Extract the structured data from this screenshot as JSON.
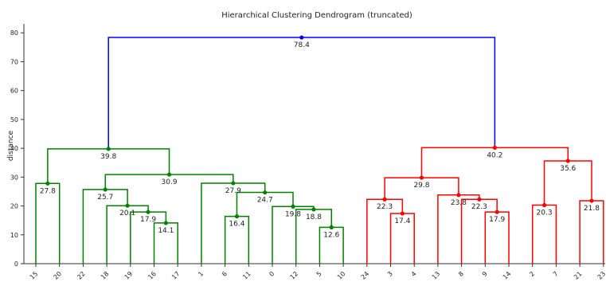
{
  "chart_data": {
    "type": "dendrogram",
    "title": "Hierarchical Clustering Dendrogram (truncated)",
    "xlabel": "",
    "ylabel": "distance",
    "ylim": [
      0,
      82
    ],
    "yticks": [
      0,
      10,
      20,
      30,
      40,
      50,
      60,
      70,
      80
    ],
    "grid": false,
    "leaves": [
      "15",
      "20",
      "22",
      "18",
      "19",
      "16",
      "17",
      "1",
      "6",
      "11",
      "0",
      "12",
      "5",
      "10",
      "24",
      "3",
      "4",
      "13",
      "8",
      "9",
      "14",
      "2",
      "7",
      "21",
      "23"
    ],
    "colors": {
      "left": "#008000",
      "right": "#ff0000",
      "root": "#0000ff"
    },
    "merges": [
      {
        "id": "a",
        "left": {
          "leaf": 0
        },
        "right": {
          "leaf": 1
        },
        "height": 27.8,
        "color": "#008000",
        "label": "27.8"
      },
      {
        "id": "b",
        "left": {
          "leaf": 5
        },
        "right": {
          "leaf": 6
        },
        "height": 14.1,
        "color": "#008000",
        "label": "14.1"
      },
      {
        "id": "c",
        "left": {
          "leaf": 4
        },
        "right": {
          "node": "b"
        },
        "height": 17.9,
        "color": "#008000",
        "label": "17.9"
      },
      {
        "id": "d",
        "left": {
          "leaf": 3
        },
        "right": {
          "node": "c"
        },
        "height": 20.1,
        "color": "#008000",
        "label": "20.1"
      },
      {
        "id": "e",
        "left": {
          "leaf": 2
        },
        "right": {
          "node": "d"
        },
        "height": 25.7,
        "color": "#008000",
        "label": "25.7"
      },
      {
        "id": "f",
        "left": {
          "leaf": 8
        },
        "right": {
          "leaf": 9
        },
        "height": 16.4,
        "color": "#008000",
        "label": "16.4"
      },
      {
        "id": "g",
        "left": {
          "leaf": 12
        },
        "right": {
          "leaf": 13
        },
        "height": 12.6,
        "color": "#008000",
        "label": "12.6"
      },
      {
        "id": "h",
        "left": {
          "leaf": 11
        },
        "right": {
          "node": "g"
        },
        "height": 18.8,
        "color": "#008000",
        "label": "18.8"
      },
      {
        "id": "i",
        "left": {
          "leaf": 10
        },
        "right": {
          "node": "h"
        },
        "height": 19.8,
        "color": "#008000",
        "label": "19.8"
      },
      {
        "id": "j",
        "left": {
          "node": "f"
        },
        "right": {
          "node": "i"
        },
        "height": 24.7,
        "color": "#008000",
        "label": "24.7"
      },
      {
        "id": "k",
        "left": {
          "leaf": 7
        },
        "right": {
          "node": "j"
        },
        "height": 27.9,
        "color": "#008000",
        "label": "27.9"
      },
      {
        "id": "l",
        "left": {
          "node": "e"
        },
        "right": {
          "node": "k"
        },
        "height": 30.9,
        "color": "#008000",
        "label": "30.9"
      },
      {
        "id": "m",
        "left": {
          "node": "a"
        },
        "right": {
          "node": "l"
        },
        "height": 39.8,
        "color": "#008000",
        "label": "39.8"
      },
      {
        "id": "n",
        "left": {
          "leaf": 15
        },
        "right": {
          "leaf": 16
        },
        "height": 17.4,
        "color": "#ff0000",
        "label": "17.4"
      },
      {
        "id": "o",
        "left": {
          "leaf": 14
        },
        "right": {
          "node": "n"
        },
        "height": 22.3,
        "color": "#ff0000",
        "label": "22.3"
      },
      {
        "id": "p",
        "left": {
          "leaf": 19
        },
        "right": {
          "leaf": 20
        },
        "height": 17.9,
        "color": "#ff0000",
        "label": "17.9"
      },
      {
        "id": "q",
        "left": {
          "leaf": 18
        },
        "right": {
          "node": "p"
        },
        "height": 22.3,
        "color": "#ff0000",
        "label": "22.3"
      },
      {
        "id": "r",
        "left": {
          "leaf": 17
        },
        "right": {
          "node": "q"
        },
        "height": 23.8,
        "color": "#ff0000",
        "label": "23.8"
      },
      {
        "id": "s",
        "left": {
          "node": "o"
        },
        "right": {
          "node": "r"
        },
        "height": 29.8,
        "color": "#ff0000",
        "label": "29.8"
      },
      {
        "id": "t",
        "left": {
          "leaf": 21
        },
        "right": {
          "leaf": 22
        },
        "height": 20.3,
        "color": "#ff0000",
        "label": "20.3"
      },
      {
        "id": "u",
        "left": {
          "leaf": 23
        },
        "right": {
          "leaf": 24
        },
        "height": 21.8,
        "color": "#ff0000",
        "label": "21.8"
      },
      {
        "id": "v",
        "left": {
          "node": "t"
        },
        "right": {
          "node": "u"
        },
        "height": 35.6,
        "color": "#ff0000",
        "label": "35.6"
      },
      {
        "id": "w",
        "left": {
          "node": "s"
        },
        "right": {
          "node": "v"
        },
        "height": 40.2,
        "color": "#ff0000",
        "label": "40.2"
      },
      {
        "id": "x",
        "left": {
          "node": "m"
        },
        "right": {
          "node": "w"
        },
        "height": 78.4,
        "color": "#0000ff",
        "label": "78.4"
      }
    ]
  }
}
